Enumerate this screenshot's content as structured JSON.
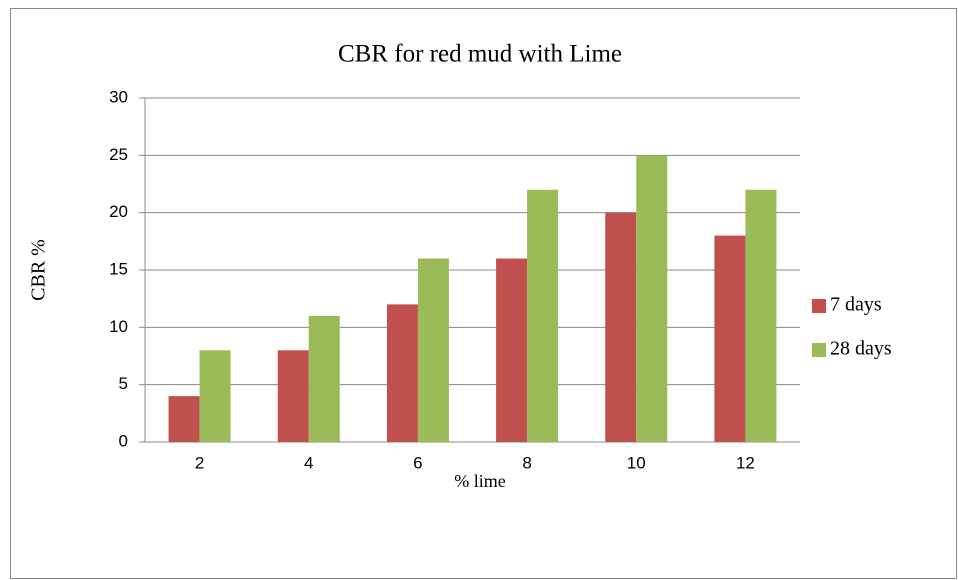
{
  "chart_data": {
    "type": "bar",
    "title": "CBR for red mud with Lime",
    "x_label": "% lime",
    "y_label": "CBR %",
    "categories": [
      "2",
      "4",
      "6",
      "8",
      "10",
      "12"
    ],
    "series": [
      {
        "name": "7 days",
        "color": "#c0504d",
        "values": [
          4,
          8,
          12,
          16,
          20,
          18
        ]
      },
      {
        "name": "28 days",
        "color": "#9bbb59",
        "values": [
          8,
          11,
          16,
          22,
          25,
          22
        ]
      }
    ],
    "ylim": [
      0,
      30
    ],
    "yticks": [
      0,
      5,
      10,
      15,
      20,
      25,
      30
    ],
    "grid": true,
    "legend": "right"
  }
}
